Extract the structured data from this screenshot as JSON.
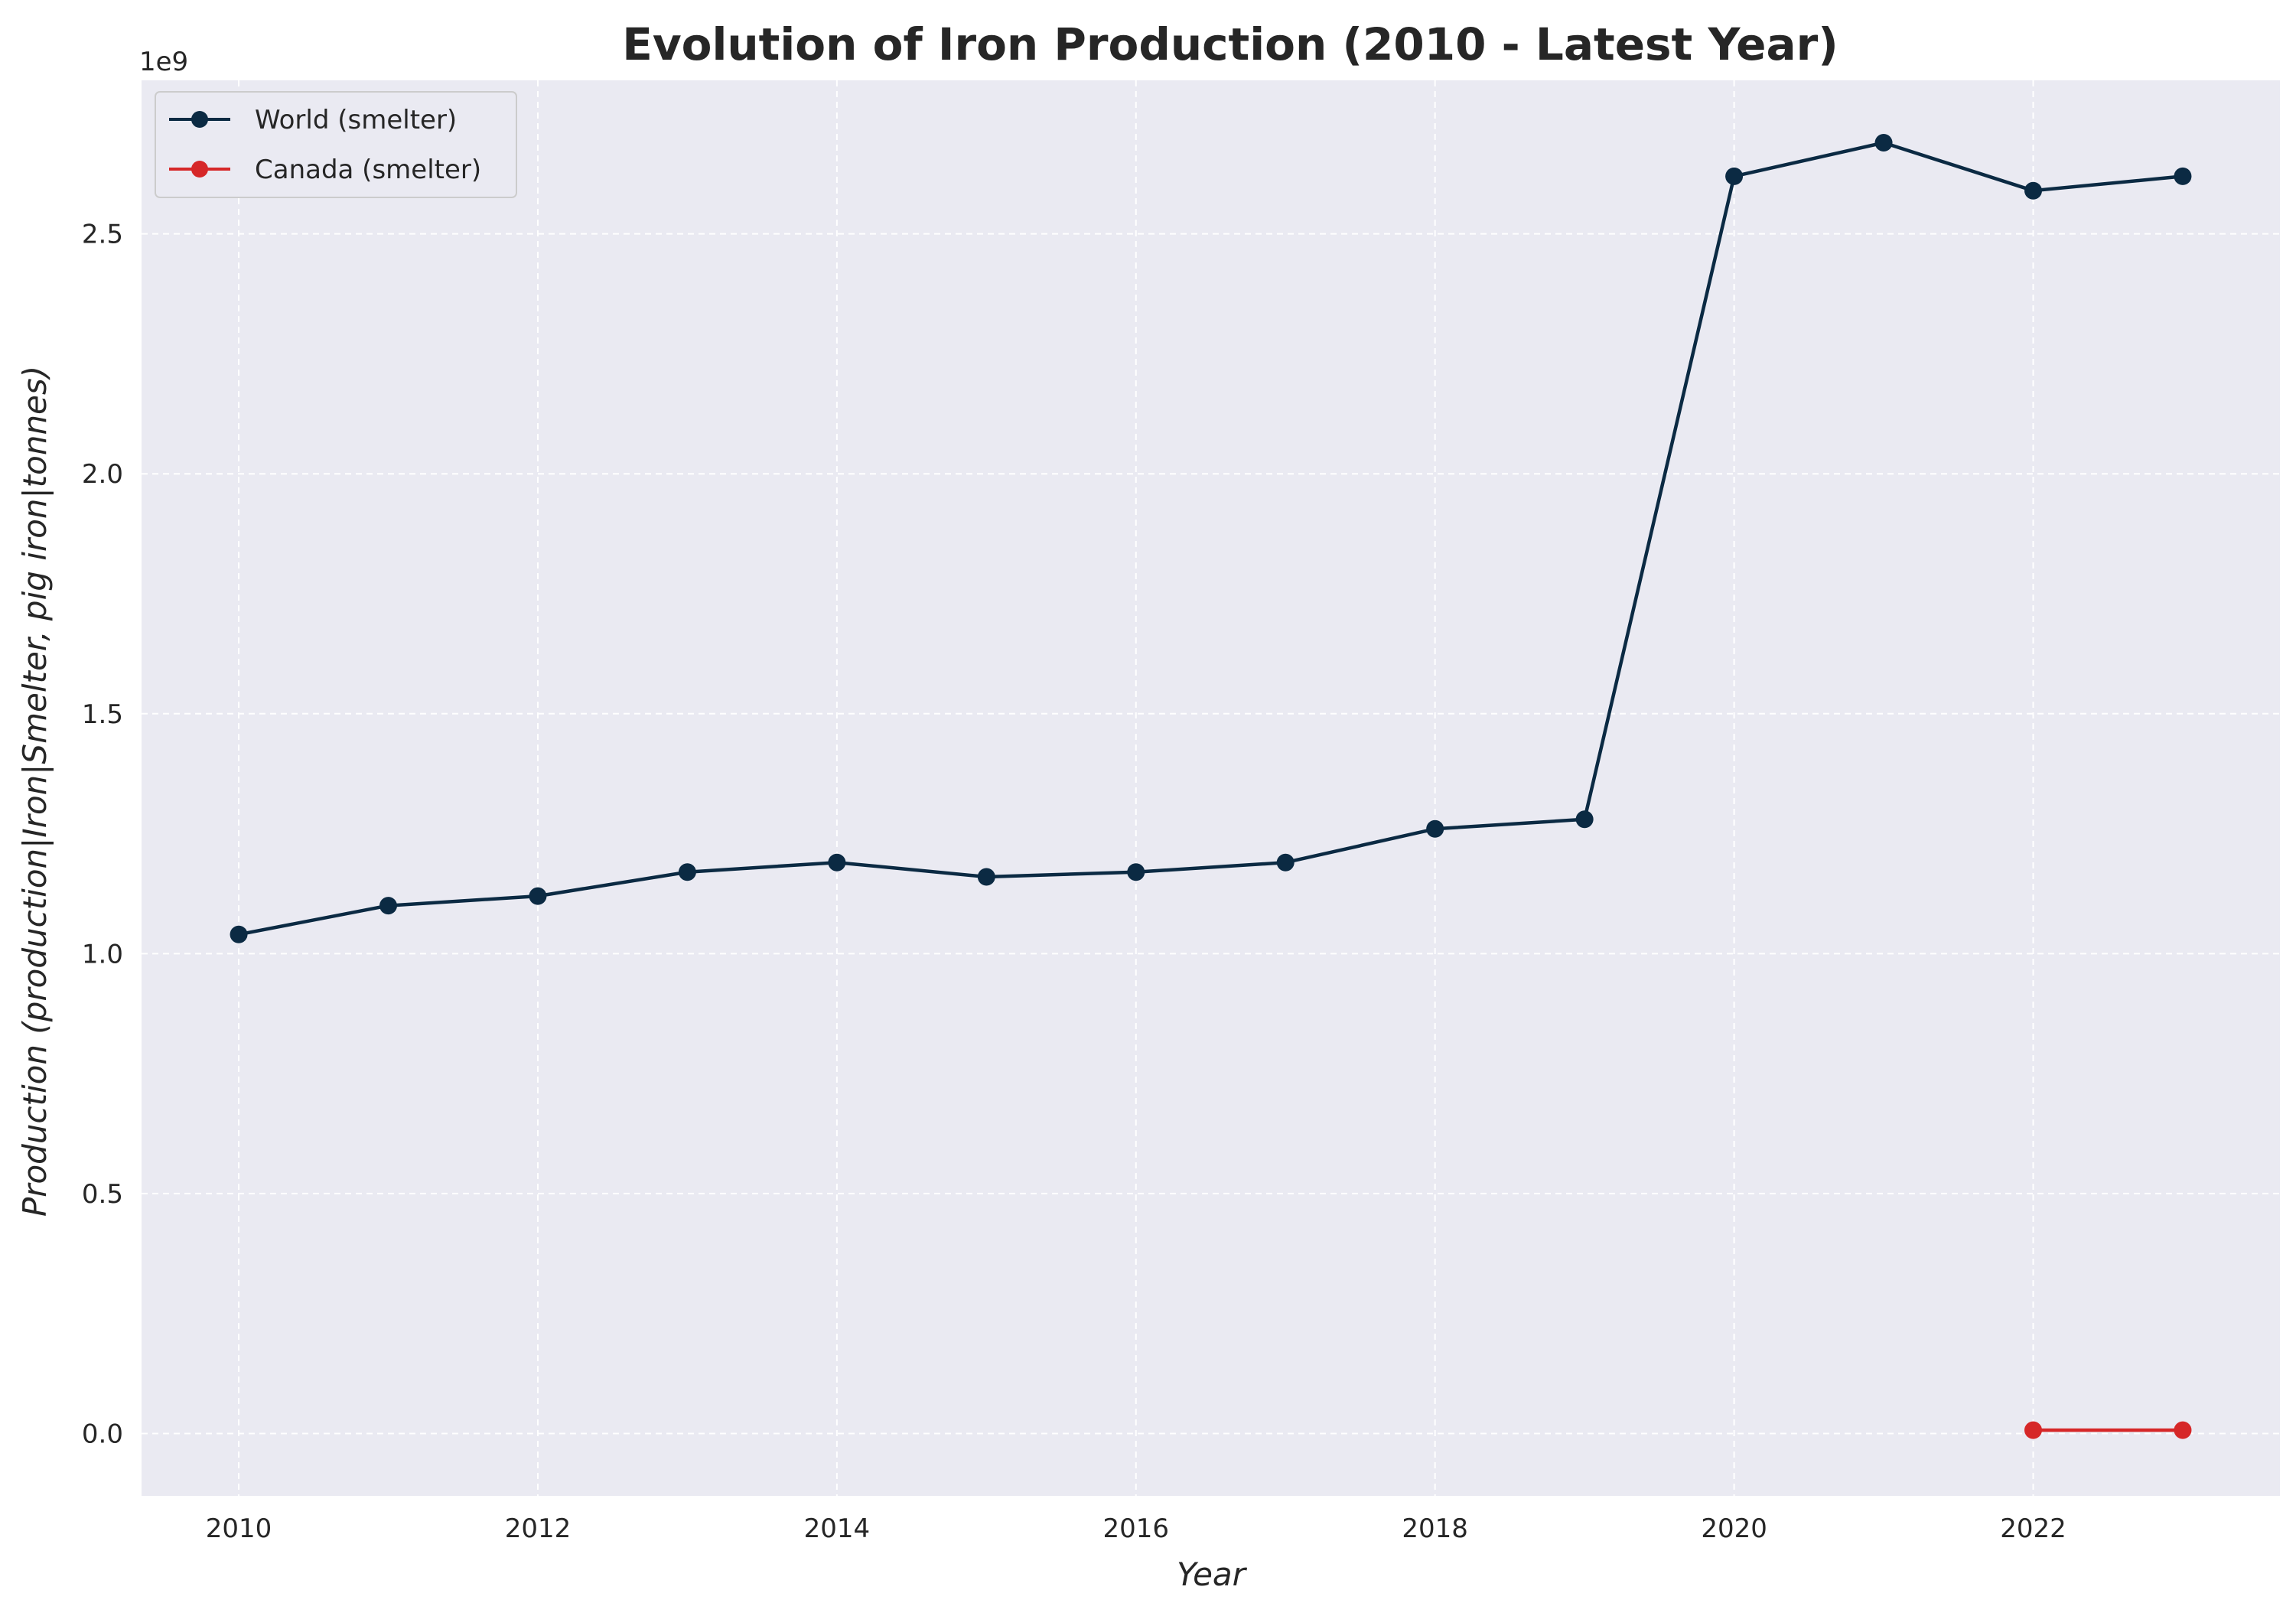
{
  "chart_data": {
    "type": "line",
    "title": "Evolution of Iron Production (2010 - Latest Year)",
    "xlabel": "Year",
    "ylabel": "Production (production|Iron|Smelter, pig iron|tonnes)",
    "y_offset_label": "1e9",
    "xlim": [
      2009.35,
      2023.65
    ],
    "ylim": [
      -130000000,
      2820000000
    ],
    "x_ticks": [
      2010,
      2012,
      2014,
      2016,
      2018,
      2020,
      2022
    ],
    "x_tick_labels": [
      "2010",
      "2012",
      "2014",
      "2016",
      "2018",
      "2020",
      "2022"
    ],
    "y_ticks": [
      0,
      500000000,
      1000000000,
      1500000000,
      2000000000,
      2500000000
    ],
    "y_tick_labels": [
      "0.0",
      "0.5",
      "1.0",
      "1.5",
      "2.0",
      "2.5"
    ],
    "grid": true,
    "legend_position": "top-left",
    "background_color": "#eaeaf2",
    "series": [
      {
        "name": "World (smelter)",
        "color": "#0b2a43",
        "x": [
          2010,
          2011,
          2012,
          2013,
          2014,
          2015,
          2016,
          2017,
          2018,
          2019,
          2020,
          2021,
          2022,
          2023
        ],
        "values": [
          1040000000,
          1100000000,
          1120000000,
          1170000000,
          1190000000,
          1160000000,
          1170000000,
          1190000000,
          1260000000,
          1280000000,
          2620000000,
          2690000000,
          2590000000,
          2620000000
        ]
      },
      {
        "name": "Canada (smelter)",
        "color": "#d62728",
        "x": [
          2022,
          2023
        ],
        "values": [
          7000000,
          7000000
        ]
      }
    ]
  }
}
